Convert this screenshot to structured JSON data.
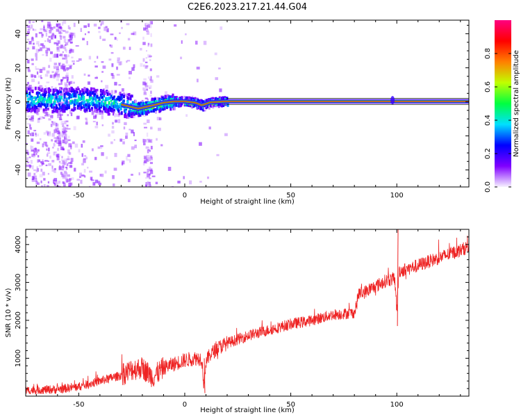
{
  "chart_data": [
    {
      "type": "heatmap",
      "title": "C2E6.2023.217.21.44.G04",
      "xlabel": "Height of straight line (km)",
      "ylabel": "Frequency (Hz)",
      "xlim": [
        -75,
        134
      ],
      "ylim": [
        -50,
        48
      ],
      "xticks": [
        -50,
        0,
        50,
        100
      ],
      "yticks": [
        -40,
        -20,
        0,
        20,
        40
      ],
      "colorbar": {
        "label": "Normalized spectral amplitude",
        "range": [
          0,
          1
        ],
        "ticks": [
          "0.0",
          "0.2",
          "0.4",
          "0.6",
          "0.8"
        ],
        "colormap": [
          "#f7f2ff",
          "#8000ff",
          "#0000ff",
          "#00e0ff",
          "#00ff40",
          "#c0ff00",
          "#ff8000",
          "#ff0000",
          "#ff0080"
        ]
      },
      "ridge_line": {
        "x": [
          -75,
          -60,
          -50,
          -40,
          -30,
          -22,
          -15,
          -10,
          -5,
          0,
          5,
          8,
          12,
          20,
          40,
          60,
          80,
          98,
          110,
          134
        ],
        "y": [
          1.5,
          1.0,
          1.5,
          0.5,
          -1.5,
          -4.0,
          -2.0,
          -0.5,
          0.2,
          0.3,
          -0.5,
          -2.0,
          -0.3,
          0.3,
          0.3,
          0.3,
          0.3,
          0.3,
          0.3,
          0.3
        ]
      },
      "grid": false
    },
    {
      "type": "line",
      "xlabel": "Height of straight line (km)",
      "ylabel": "SNR (10 * v/v)",
      "xlim": [
        -75,
        134
      ],
      "ylim": [
        0,
        4400
      ],
      "xticks": [
        -50,
        0,
        50,
        100
      ],
      "yticks": [
        1000,
        2000,
        3000,
        4000
      ],
      "color": "#ee2222",
      "x": [
        -75,
        -60,
        -50,
        -40,
        -30,
        -25,
        -20,
        -15,
        -10,
        -5,
        0,
        5,
        8,
        9,
        10,
        12,
        15,
        20,
        30,
        40,
        50,
        60,
        70,
        80,
        81,
        82,
        85,
        90,
        95,
        99,
        100,
        101,
        105,
        110,
        120,
        130,
        134
      ],
      "y": [
        150,
        180,
        250,
        400,
        550,
        700,
        750,
        500,
        750,
        850,
        950,
        1000,
        1000,
        300,
        900,
        1100,
        1250,
        1400,
        1600,
        1750,
        1900,
        2000,
        2150,
        2200,
        2400,
        2700,
        2750,
        2900,
        3050,
        3100,
        2300,
        3300,
        3350,
        3450,
        3650,
        3850,
        3950
      ]
    }
  ]
}
